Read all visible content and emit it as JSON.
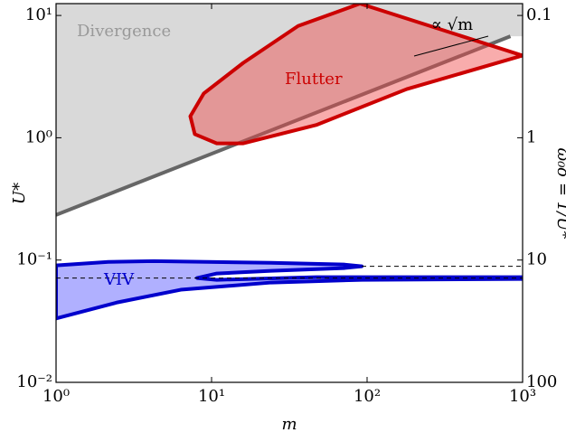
{
  "chart_data": {
    "type": "region",
    "x_label": "m",
    "y_label": "U*",
    "y2_label": "ω₀δ = 1/U*",
    "annotation": "∝ √m",
    "log_x": true,
    "log_y": true,
    "xlim": [
      1,
      1000
    ],
    "xticks": [
      {
        "value": 1,
        "label": "10⁰"
      },
      {
        "value": 10,
        "label": "10¹"
      },
      {
        "value": 100,
        "label": "10²"
      },
      {
        "value": 1000,
        "label": "10³"
      }
    ],
    "ylim": [
      0.01,
      12.5
    ],
    "yticks": [
      {
        "value": 0.01,
        "label": "10⁻²"
      },
      {
        "value": 0.1,
        "label": "10⁻¹"
      },
      {
        "value": 1,
        "label": "10⁰"
      },
      {
        "value": 10,
        "label": "10¹"
      }
    ],
    "y2lim": [
      100,
      0.08
    ],
    "y2ticks": [
      0.1,
      1,
      10,
      100
    ],
    "series": [
      {
        "name": "Divergence",
        "color": "#666666",
        "fill": "#d9d9d9",
        "fill_side": "above",
        "x": [
          1,
          835
        ],
        "values": [
          0.234,
          6.76
        ]
      },
      {
        "name": "Flutter",
        "color": "#cc0000",
        "fill": "rgba(240,70,70,0.45)",
        "closed": true,
        "x": [
          90,
          36,
          16,
          8.9,
          7.3,
          7.8,
          10.8,
          16,
          47,
          180,
          1000
        ],
        "values": [
          12.5,
          8.2,
          4.1,
          2.3,
          1.5,
          1.07,
          0.9,
          0.9,
          1.27,
          2.5,
          4.7
        ]
      },
      {
        "name": "VIV",
        "color": "#0000cc",
        "fill": "rgba(80,80,255,0.45)",
        "closed": true,
        "x": [
          1,
          2.17,
          4.25,
          24.2,
          70.6,
          92.3,
          70.6,
          24.2,
          10.8,
          8.07,
          10.8,
          47.3,
          1000,
          1000,
          92.3,
          24.2,
          6.34,
          2.49,
          1
        ],
        "values": [
          0.0904,
          0.0966,
          0.098,
          0.095,
          0.092,
          0.0889,
          0.0859,
          0.0816,
          0.0776,
          0.0713,
          0.0689,
          0.0725,
          0.0725,
          0.0701,
          0.0689,
          0.0655,
          0.0572,
          0.0451,
          0.0333
        ]
      },
      {
        "color": "#000000",
        "dash": true,
        "x": [
          92.3,
          1000
        ],
        "values": [
          0.0889,
          0.0889
        ]
      },
      {
        "color": "#000000",
        "dash": true,
        "x": [
          1,
          1000
        ],
        "values": [
          0.0713,
          0.0713
        ]
      }
    ]
  }
}
